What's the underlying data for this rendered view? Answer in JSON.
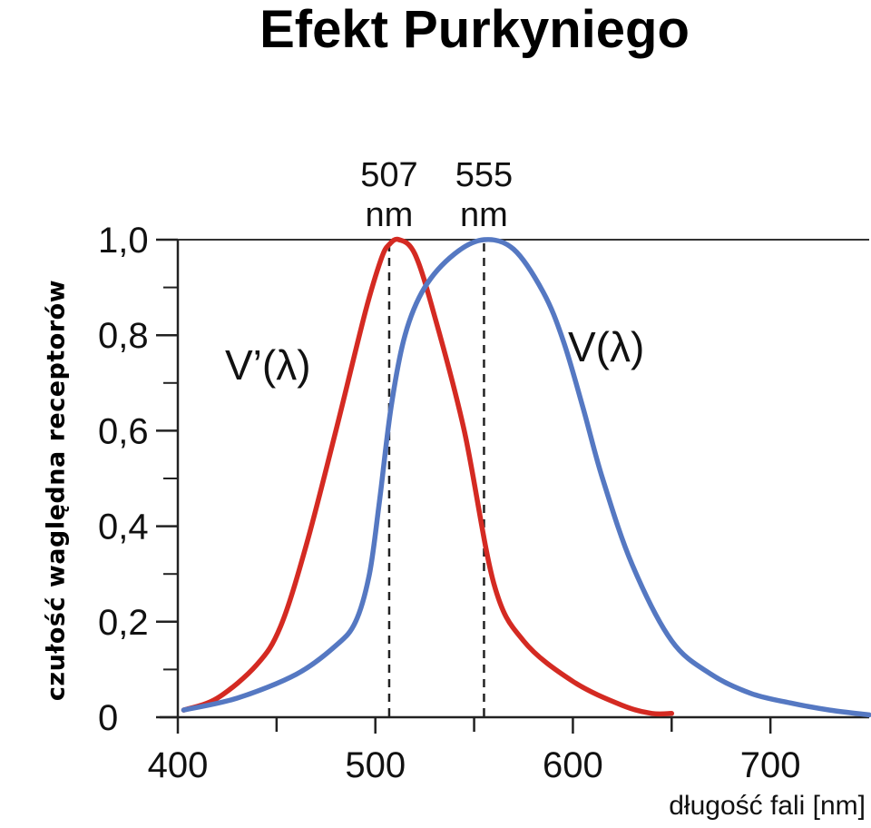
{
  "title": "Efekt Purkyniego",
  "chart_data": {
    "type": "line",
    "title": "Efekt Purkyniego",
    "xlabel": "długość fali [nm]",
    "ylabel": "czułość waględna receptorów",
    "xlim": [
      400,
      750
    ],
    "ylim": [
      0,
      1.0
    ],
    "x_ticks": [
      400,
      500,
      600,
      700
    ],
    "x_tick_labels": [
      "400",
      "500",
      "600",
      "700"
    ],
    "y_ticks": [
      0,
      0.2,
      0.4,
      0.6,
      0.8,
      1.0
    ],
    "y_tick_labels": [
      "0",
      "0,2",
      "0,4",
      "0,6",
      "0,8",
      "1,0"
    ],
    "grid": false,
    "series": [
      {
        "name": "V’(λ)",
        "color": "#d42a22",
        "x": [
          403,
          420,
          440,
          452,
          465,
          480,
          495,
          503,
          507,
          512,
          520,
          530,
          545,
          560,
          575,
          600,
          625,
          640,
          650
        ],
        "y": [
          0.015,
          0.04,
          0.11,
          0.19,
          0.36,
          0.6,
          0.85,
          0.96,
          0.99,
          1.0,
          0.97,
          0.84,
          0.6,
          0.28,
          0.16,
          0.075,
          0.025,
          0.008,
          0.008
        ]
      },
      {
        "name": "V(λ)",
        "color": "#5578c2",
        "x": [
          403,
          430,
          460,
          480,
          490,
          497,
          502,
          508,
          515,
          525,
          540,
          555,
          570,
          585,
          595,
          605,
          615,
          630,
          650,
          670,
          690,
          710,
          730,
          750
        ],
        "y": [
          0.015,
          0.04,
          0.09,
          0.15,
          0.2,
          0.3,
          0.45,
          0.65,
          0.8,
          0.9,
          0.97,
          1.0,
          0.98,
          0.89,
          0.79,
          0.65,
          0.5,
          0.32,
          0.16,
          0.09,
          0.05,
          0.03,
          0.015,
          0.005
        ]
      }
    ],
    "annotations": [
      {
        "text": "507",
        "unit": "nm",
        "x": 507
      },
      {
        "text": "555",
        "unit": "nm",
        "x": 555
      }
    ]
  }
}
